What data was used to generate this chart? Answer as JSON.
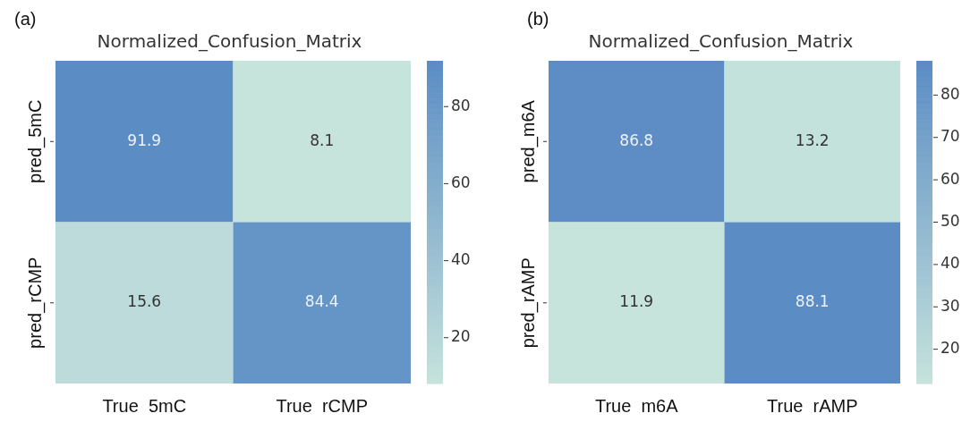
{
  "chart_data": [
    {
      "type": "heatmap",
      "title": "Normalized_Confusion_Matrix",
      "annotations": [
        "(a)"
      ],
      "categories": [
        "True  5mC",
        "True  rCMP"
      ],
      "y_categories": [
        "pred_5mC",
        "pred_rCMP"
      ],
      "cells": [
        [
          91.9,
          8.1
        ],
        [
          15.6,
          84.4
        ]
      ],
      "data_labels": true,
      "clim": [
        8.1,
        91.9
      ],
      "cticks": [
        20,
        40,
        60,
        80
      ]
    },
    {
      "type": "heatmap",
      "title": "Normalized_Confusion_Matrix",
      "annotations": [
        "(b)"
      ],
      "categories": [
        "True  m6A",
        "True  rAMP"
      ],
      "y_categories": [
        "pred_m6A",
        "pred_rAMP"
      ],
      "cells": [
        [
          86.8,
          13.2
        ],
        [
          11.9,
          88.1
        ]
      ],
      "data_labels": true,
      "clim": [
        11.9,
        88.1
      ],
      "cticks": [
        20,
        30,
        40,
        50,
        60,
        70,
        80
      ]
    }
  ]
}
